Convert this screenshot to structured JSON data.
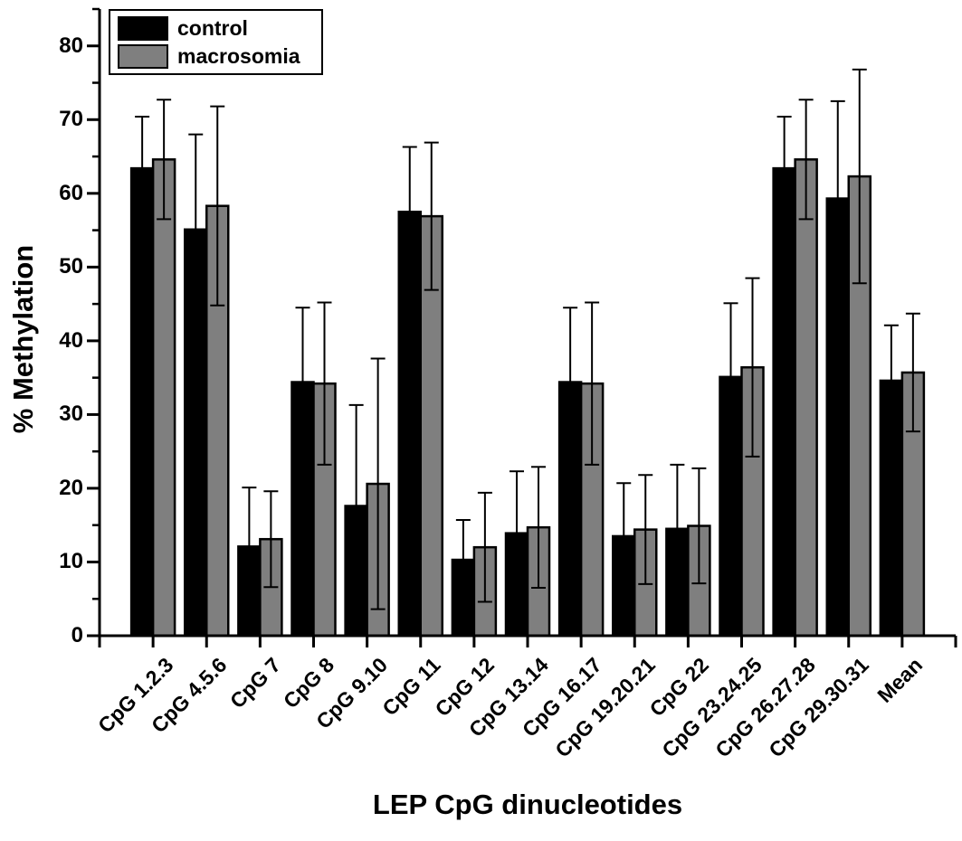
{
  "chart_data": {
    "type": "bar",
    "title": "",
    "xlabel": "LEP CpG dinucleotides",
    "ylabel": "% Methylation",
    "ylim": [
      0,
      85
    ],
    "y_major_ticks": [
      0,
      10,
      20,
      30,
      40,
      50,
      60,
      70,
      80
    ],
    "y_minor_tick_step": 5,
    "grid": false,
    "legend_position": "top-left",
    "error_bars": "symmetric-sd",
    "categories": [
      "CpG 1.2.3",
      "CpG 4.5.6",
      "CpG 7",
      "CpG 8",
      "CpG 9.10",
      "CpG 11",
      "CpG 12",
      "CpG 13.14",
      "CpG 16.17",
      "CpG 19.20.21",
      "CpG 22",
      "CpG 23.24.25",
      "CpG 26.27.28",
      "CpG 29.30.31",
      "Mean"
    ],
    "series": [
      {
        "name": "control",
        "color": "#000000",
        "values": [
          63.4,
          55.1,
          12.1,
          34.4,
          17.6,
          57.5,
          10.3,
          13.9,
          34.4,
          13.5,
          14.5,
          35.1,
          63.4,
          59.3,
          34.6
        ],
        "errors": [
          7.0,
          12.9,
          8.0,
          10.1,
          13.7,
          8.8,
          5.4,
          8.4,
          10.1,
          7.2,
          8.7,
          10.0,
          7.0,
          13.2,
          7.5
        ]
      },
      {
        "name": "macrosomia",
        "color": "#7f7f7f",
        "values": [
          64.6,
          58.3,
          13.1,
          34.2,
          20.6,
          56.9,
          12.0,
          14.7,
          34.2,
          14.4,
          14.9,
          36.4,
          64.6,
          62.3,
          35.7
        ],
        "errors": [
          8.1,
          13.5,
          6.5,
          11.0,
          17.0,
          10.0,
          7.4,
          8.2,
          11.0,
          7.4,
          7.8,
          12.1,
          8.1,
          14.5,
          8.0
        ]
      }
    ]
  },
  "legend": {
    "items": [
      {
        "label": "control",
        "color": "#000000"
      },
      {
        "label": "macrosomia",
        "color": "#7f7f7f"
      }
    ]
  },
  "style": {
    "axis_color": "#000000",
    "background": "#ffffff"
  }
}
